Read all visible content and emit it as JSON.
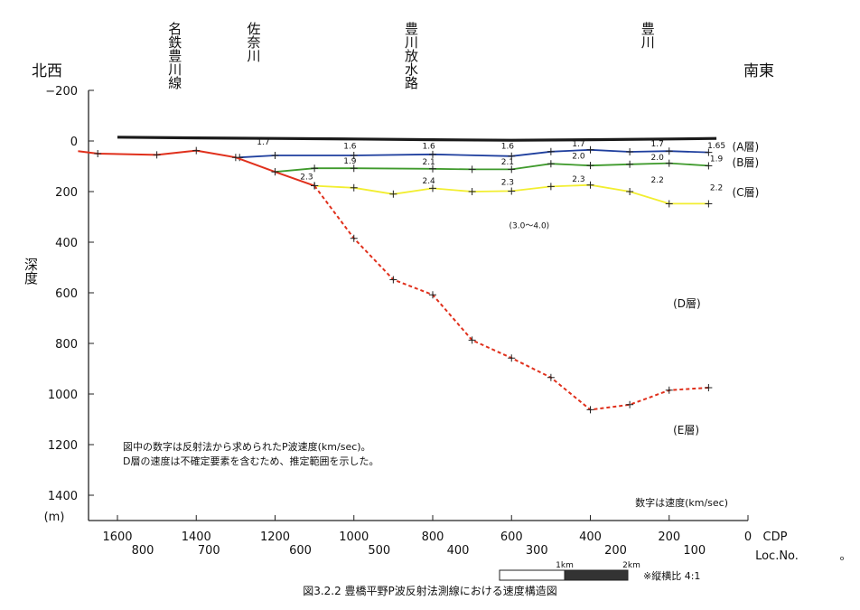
{
  "chart_data": {
    "type": "line",
    "caption": "図3.2.2  豊橋平野P波反射法測線における速度構造図",
    "direction_left": "北西",
    "direction_right": "南東",
    "y_axis": {
      "label": "深度",
      "unit": "(m)",
      "ylim": [
        -200,
        1400
      ],
      "inverted": true,
      "ticks": [
        -200,
        0,
        200,
        400,
        600,
        800,
        1000,
        1200,
        1400
      ],
      "tick_labels": [
        "−200",
        "0",
        "200",
        "400",
        "600",
        "800",
        "1000",
        "1200",
        "1400"
      ]
    },
    "x_axis": {
      "label": "CDP",
      "reversed": true,
      "xlim": [
        1700,
        0
      ],
      "ticks": [
        1600,
        1400,
        1200,
        1000,
        800,
        600,
        400,
        200,
        0
      ],
      "secondary_label": "Loc.No.",
      "secondary_ticks": [
        {
          "cdp": 1600,
          "label": "800"
        },
        {
          "cdp": 1200,
          "label": "600"
        },
        {
          "cdp": 1000,
          "label": "500"
        },
        {
          "cdp": 800,
          "label": "400"
        },
        {
          "cdp": 600,
          "label": "300"
        },
        {
          "cdp": 400,
          "label": "200"
        },
        {
          "cdp": 200,
          "label": "100"
        }
      ],
      "extra_label": "。",
      "extra_tick": {
        "cdp": 1400,
        "label": "700"
      }
    },
    "places": [
      {
        "name": "名鉄豊川線",
        "cdp": 1400
      },
      {
        "name": "佐奈川",
        "cdp": 1200
      },
      {
        "name": "豊川放水路",
        "cdp": 800
      },
      {
        "name": "豊川",
        "cdp": 200
      }
    ],
    "series": [
      {
        "key": "surface",
        "color": "#1a1a1a",
        "points": [
          [
            1600,
            -15
          ],
          [
            1400,
            -12
          ],
          [
            1200,
            -10
          ],
          [
            1000,
            -8
          ],
          [
            800,
            -5
          ],
          [
            600,
            -3
          ],
          [
            400,
            -5
          ],
          [
            200,
            -8
          ],
          [
            80,
            -10
          ]
        ]
      },
      {
        "key": "A_B",
        "color": "#1f3f9e",
        "points": [
          [
            1290,
            65
          ],
          [
            1200,
            57
          ],
          [
            1000,
            57
          ],
          [
            800,
            53
          ],
          [
            600,
            60
          ],
          [
            500,
            42
          ],
          [
            400,
            35
          ],
          [
            300,
            43
          ],
          [
            200,
            40
          ],
          [
            100,
            45
          ]
        ]
      },
      {
        "key": "B_C",
        "color": "#3f9a2c",
        "points": [
          [
            1200,
            122
          ],
          [
            1100,
            108
          ],
          [
            1000,
            108
          ],
          [
            800,
            110
          ],
          [
            700,
            112
          ],
          [
            600,
            112
          ],
          [
            500,
            90
          ],
          [
            400,
            97
          ],
          [
            300,
            92
          ],
          [
            200,
            88
          ],
          [
            100,
            98
          ]
        ]
      },
      {
        "key": "C_D",
        "color": "#f2ee30",
        "points": [
          [
            1100,
            177
          ],
          [
            1000,
            185
          ],
          [
            900,
            210
          ],
          [
            800,
            187
          ],
          [
            700,
            200
          ],
          [
            600,
            198
          ],
          [
            500,
            180
          ],
          [
            400,
            174
          ],
          [
            300,
            200
          ],
          [
            200,
            248
          ],
          [
            100,
            248
          ]
        ]
      },
      {
        "key": "upper",
        "color": "#e0301c",
        "dashed": false,
        "points": [
          [
            1700,
            40
          ],
          [
            1650,
            50
          ],
          [
            1500,
            55
          ],
          [
            1400,
            38
          ],
          [
            1300,
            65
          ],
          [
            1200,
            122
          ],
          [
            1100,
            177
          ]
        ]
      },
      {
        "key": "D_E",
        "color": "#e0301c",
        "dashed": true,
        "points": [
          [
            1100,
            177
          ],
          [
            1000,
            385
          ],
          [
            900,
            548
          ],
          [
            800,
            608
          ],
          [
            700,
            787
          ],
          [
            600,
            858
          ],
          [
            500,
            935
          ],
          [
            400,
            1062
          ],
          [
            300,
            1042
          ],
          [
            200,
            985
          ],
          [
            100,
            975
          ]
        ]
      }
    ],
    "velocity_labels": [
      {
        "text": "1.7",
        "cdp": 1230,
        "y": 15
      },
      {
        "text": "1.6",
        "cdp": 1010,
        "y": 30
      },
      {
        "text": "1.6",
        "cdp": 810,
        "y": 30
      },
      {
        "text": "1.6",
        "cdp": 610,
        "y": 30
      },
      {
        "text": "1.7",
        "cdp": 430,
        "y": 22
      },
      {
        "text": "1.7",
        "cdp": 230,
        "y": 22
      },
      {
        "text": "1.65",
        "cdp": 80,
        "y": 28
      },
      {
        "text": "1.9",
        "cdp": 1010,
        "y": 90
      },
      {
        "text": "2.1",
        "cdp": 810,
        "y": 93
      },
      {
        "text": "2.1",
        "cdp": 610,
        "y": 93
      },
      {
        "text": "2.0",
        "cdp": 430,
        "y": 70
      },
      {
        "text": "2.0",
        "cdp": 230,
        "y": 75
      },
      {
        "text": "1.9",
        "cdp": 80,
        "y": 80
      },
      {
        "text": "2.3",
        "cdp": 1120,
        "y": 152
      },
      {
        "text": "2.4",
        "cdp": 810,
        "y": 168
      },
      {
        "text": "2.3",
        "cdp": 610,
        "y": 173
      },
      {
        "text": "2.3",
        "cdp": 430,
        "y": 160
      },
      {
        "text": "2.2",
        "cdp": 230,
        "y": 165
      },
      {
        "text": "2.2",
        "cdp": 80,
        "y": 195
      },
      {
        "text": "(3.0〜4.0)",
        "cdp": 555,
        "y": 345
      }
    ],
    "layer_labels": [
      {
        "text": "(A層)",
        "cdp": 40,
        "y": 20
      },
      {
        "text": "(B層)",
        "cdp": 40,
        "y": 82
      },
      {
        "text": "(C層)",
        "cdp": 40,
        "y": 200
      },
      {
        "text": "(D層)",
        "cdp": 190,
        "y": 640
      },
      {
        "text": "(E層)",
        "cdp": 190,
        "y": 1140
      }
    ],
    "notes": [
      "図中の数字は反射法から求められたP波速度(km/sec)。",
      "D層の速度は不確定要素を含むため、推定範囲を示した。"
    ],
    "speed_note": "数字は速度(km/sec)",
    "scale_bar": {
      "label_1": "1km",
      "label_2": "2km",
      "ratio": "※縦横比  4:1"
    }
  }
}
